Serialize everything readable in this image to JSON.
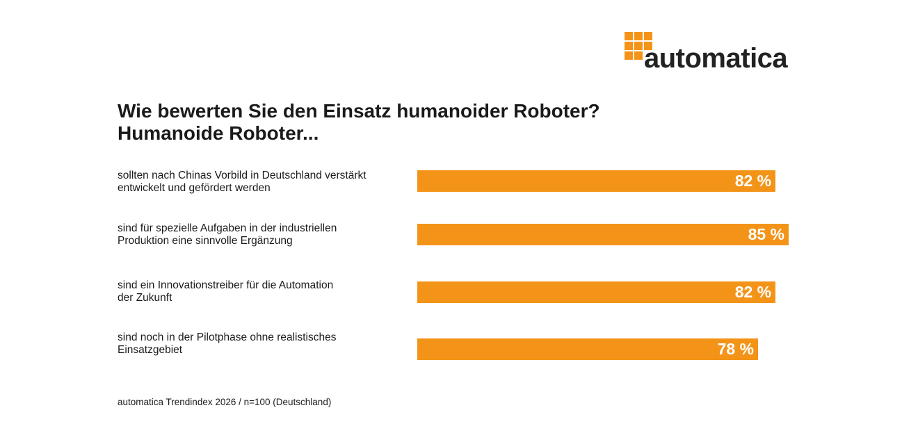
{
  "logo": "automatica",
  "chart_data": {
    "type": "bar",
    "orientation": "horizontal",
    "title": "Wie bewerten Sie den Einsatz humanoider Roboter?",
    "subtitle": "Humanoide Roboter...",
    "categories": [
      "sollten nach Chinas Vorbild in Deutschland verstärkt\nentwickelt und gefördert werden",
      "sind für spezielle Aufgaben in der industriellen\nProduktion eine sinnvolle Ergänzung",
      "sind ein Innovationstreiber für die Automation\nder Zukunft",
      "sind noch in der Pilotphase ohne realistisches\nEinsatzgebiet"
    ],
    "values": [
      82,
      85,
      82,
      78
    ],
    "value_labels": [
      "82 %",
      "85 %",
      "82 %",
      "78 %"
    ],
    "color": "#f39419",
    "source": "automatica Trendindex 2026 / n=100 (Deutschland)"
  }
}
